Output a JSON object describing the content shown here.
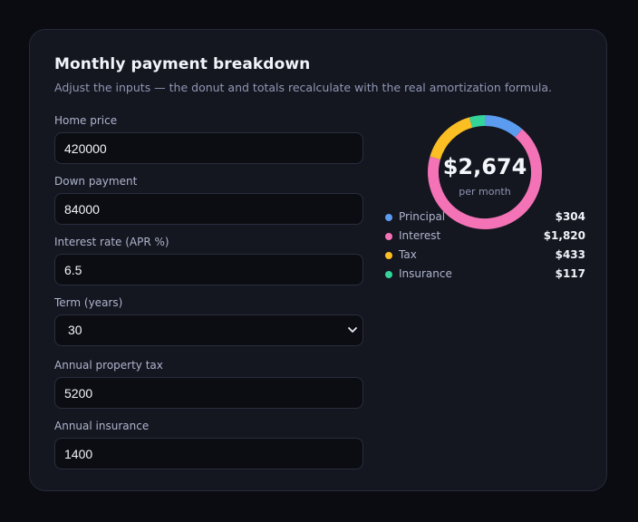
{
  "card": {
    "title": "Monthly payment breakdown",
    "subtitle": "Adjust the inputs — the donut and totals recalculate with the real amortization formula."
  },
  "fields": {
    "home_price": {
      "label": "Home price",
      "value": "420000"
    },
    "down_payment": {
      "label": "Down payment",
      "value": "84000"
    },
    "interest_rate": {
      "label": "Interest rate (APR %)",
      "value": "6.5"
    },
    "term": {
      "label": "Term (years)",
      "value": "30"
    },
    "property_tax": {
      "label": "Annual property tax",
      "value": "5200"
    },
    "insurance": {
      "label": "Annual insurance",
      "value": "1400"
    }
  },
  "summary": {
    "monthly_total": "$2,674",
    "per_label": "per month"
  },
  "breakdown": [
    {
      "label": "Principal",
      "value_text": "$304",
      "amount": 304,
      "color": "#5b9cf0"
    },
    {
      "label": "Interest",
      "value_text": "$1,820",
      "amount": 1820,
      "color": "#f472b6"
    },
    {
      "label": "Tax",
      "value_text": "$433",
      "amount": 433,
      "color": "#fbbf24"
    },
    {
      "label": "Insurance",
      "value_text": "$117",
      "amount": 117,
      "color": "#34d399"
    }
  ],
  "icons": {
    "select_arrow": "chevron-down-icon"
  }
}
